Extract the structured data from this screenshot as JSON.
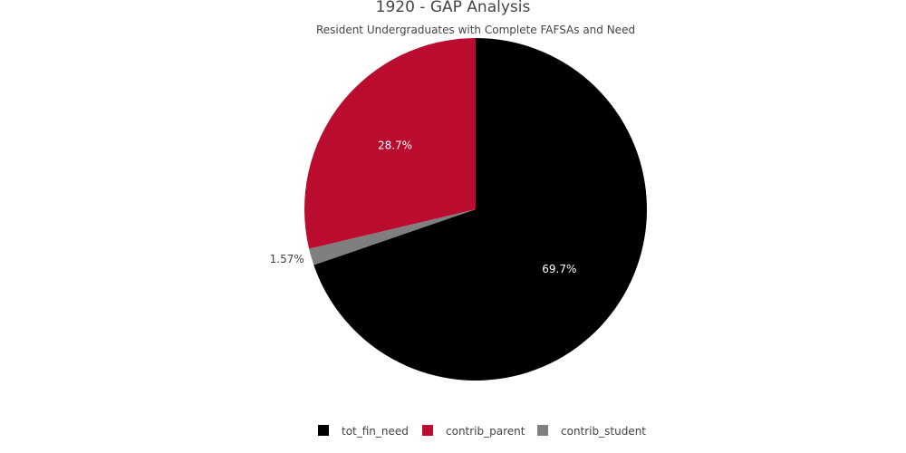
{
  "chart_data": {
    "type": "pie",
    "title": "1920 - GAP Analysis",
    "subtitle": "Resident Undergraduates with Complete FAFSAs and Need",
    "slices": [
      {
        "name": "tot_fin_need",
        "value": 69.7,
        "label": "69.7%",
        "color": "#000000",
        "label_color": "#ffffff",
        "label_position": "inside"
      },
      {
        "name": "contrib_student",
        "value": 1.57,
        "label": "1.57%",
        "color": "#7f7f7f",
        "label_color": "#444444",
        "label_position": "outside"
      },
      {
        "name": "contrib_parent",
        "value": 28.7,
        "label": "28.7%",
        "color": "#ba0c2f",
        "label_color": "#ffffff",
        "label_position": "inside"
      }
    ],
    "direction": "clockwise",
    "start": "top",
    "legend": {
      "placement": "bottom-center",
      "items": [
        {
          "name": "tot_fin_need",
          "color": "#000000"
        },
        {
          "name": "contrib_parent",
          "color": "#ba0c2f"
        },
        {
          "name": "contrib_student",
          "color": "#7f7f7f"
        }
      ]
    }
  }
}
